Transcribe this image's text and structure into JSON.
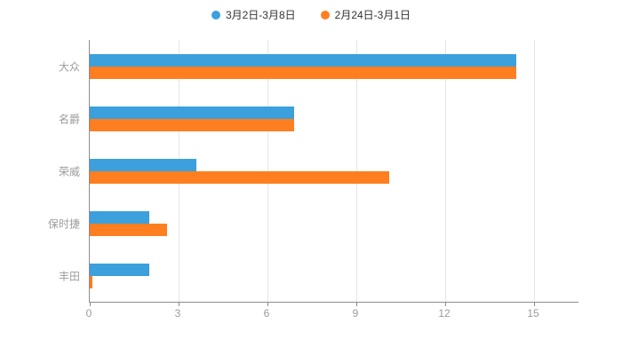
{
  "legend": [
    {
      "label": "3月2日-3月8日",
      "color": "#3ba0dc"
    },
    {
      "label": "2月24日-3月1日",
      "color": "#ff7e1f"
    }
  ],
  "chart_data": {
    "type": "bar",
    "orientation": "horizontal",
    "title": "",
    "xlabel": "",
    "ylabel": "",
    "categories": [
      "大众",
      "名爵",
      "荣威",
      "保时捷",
      "丰田"
    ],
    "series": [
      {
        "name": "3月2日-3月8日",
        "color": "#3ba0dc",
        "values": [
          14.4,
          6.9,
          3.6,
          2.0,
          2.0
        ]
      },
      {
        "name": "2月24日-3月1日",
        "color": "#ff7e1f",
        "values": [
          14.4,
          6.9,
          10.1,
          2.6,
          0.1
        ]
      }
    ],
    "xlim": [
      0,
      15
    ],
    "xticks": [
      0,
      3,
      6,
      9,
      12,
      15
    ],
    "grid": true,
    "legend_position": "top",
    "axis_color": "#8c8c8c",
    "grid_color": "#e6e6e6",
    "label_color": "#9b9b9b"
  }
}
